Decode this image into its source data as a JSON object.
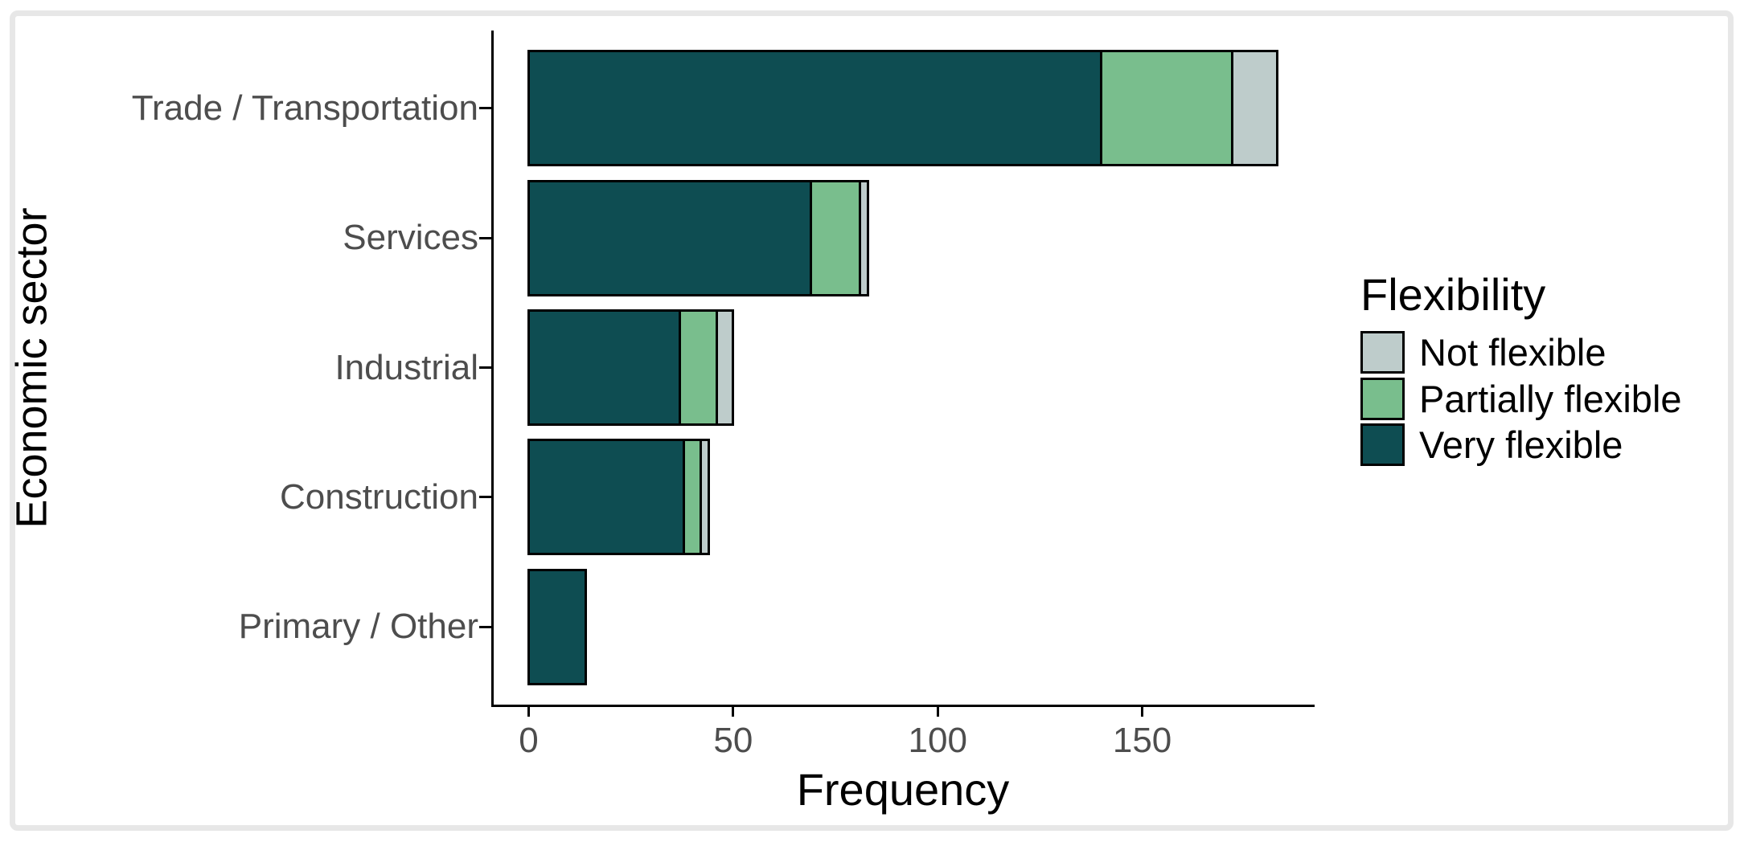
{
  "chart_data": {
    "type": "bar",
    "orientation": "horizontal",
    "stacked": true,
    "xlabel": "Frequency",
    "ylabel": "Economic sector",
    "categories": [
      "Trade / Transportation",
      "Services",
      "Industrial",
      "Construction",
      "Primary / Other"
    ],
    "x_ticks": [
      0,
      50,
      100,
      150
    ],
    "xlim": [
      0,
      183
    ],
    "grid": false,
    "series": [
      {
        "name": "Very flexible",
        "color": "#0e4d52",
        "values": [
          140,
          69,
          37,
          38,
          14
        ]
      },
      {
        "name": "Partially flexible",
        "color": "#79be8d",
        "values": [
          32,
          12,
          9,
          4,
          0
        ]
      },
      {
        "name": "Not flexible",
        "color": "#becccb",
        "values": [
          11,
          2,
          4,
          2,
          0
        ]
      }
    ],
    "legend": {
      "title": "Flexibility",
      "position": "right",
      "entries": [
        {
          "label": "Not flexible",
          "color": "#becccb"
        },
        {
          "label": "Partially flexible",
          "color": "#79be8d"
        },
        {
          "label": "Very flexible",
          "color": "#0e4d52"
        }
      ]
    },
    "colors": {
      "axis_text": "#4d4d4d",
      "axis_line": "#000000",
      "frame_border": "#e7e7e7"
    }
  }
}
